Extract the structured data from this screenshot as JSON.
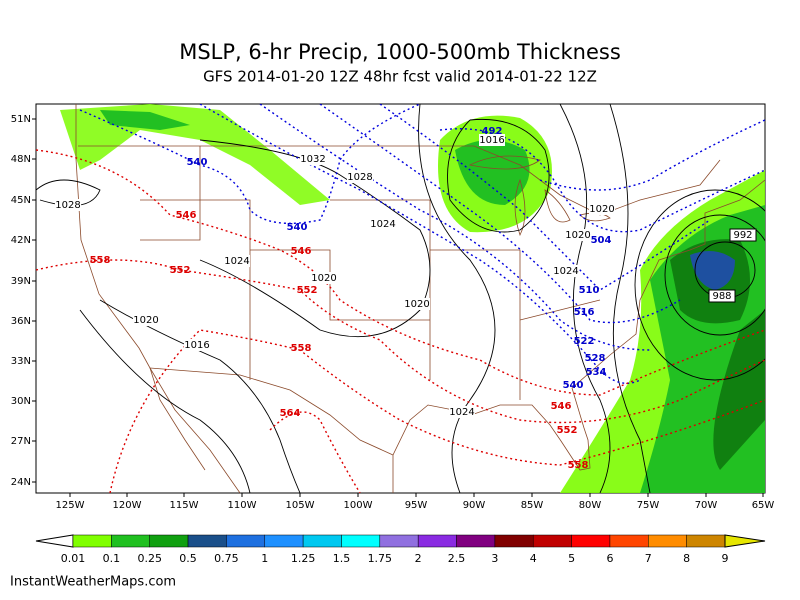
{
  "header": {
    "title": "MSLP, 6-hr Precip, 1000-500mb Thickness",
    "subtitle": "GFS 2014-01-20 12Z 48hr fcst valid 2014-01-22 12Z"
  },
  "map": {
    "lat_labels": [
      "51N",
      "48N",
      "45N",
      "42N",
      "39N",
      "36N",
      "33N",
      "30N",
      "27N",
      "24N"
    ],
    "lon_labels": [
      "125W",
      "120W",
      "115W",
      "110W",
      "105W",
      "100W",
      "95W",
      "90W",
      "85W",
      "80W",
      "75W",
      "70W",
      "65W"
    ],
    "pressure_labels": [
      "1028",
      "1032",
      "1028",
      "1024",
      "1024",
      "1020",
      "1020",
      "1020",
      "1016",
      "1016",
      "1020",
      "1020",
      "1024",
      "1024",
      "992",
      "988"
    ],
    "thickness_blue_labels": [
      "540",
      "540",
      "492",
      "504",
      "510",
      "516",
      "522",
      "528",
      "534",
      "540"
    ],
    "thickness_red_labels": [
      "546",
      "546",
      "552",
      "552",
      "558",
      "558",
      "546",
      "552",
      "558",
      "564"
    ]
  },
  "legend": {
    "labels": [
      "0.01",
      "0.1",
      "0.25",
      "0.5",
      "0.75",
      "1",
      "1.25",
      "1.5",
      "1.75",
      "2",
      "2.5",
      "3",
      "4",
      "5",
      "6",
      "7",
      "8",
      "9"
    ]
  },
  "footer": "InstantWeatherMaps.com"
}
